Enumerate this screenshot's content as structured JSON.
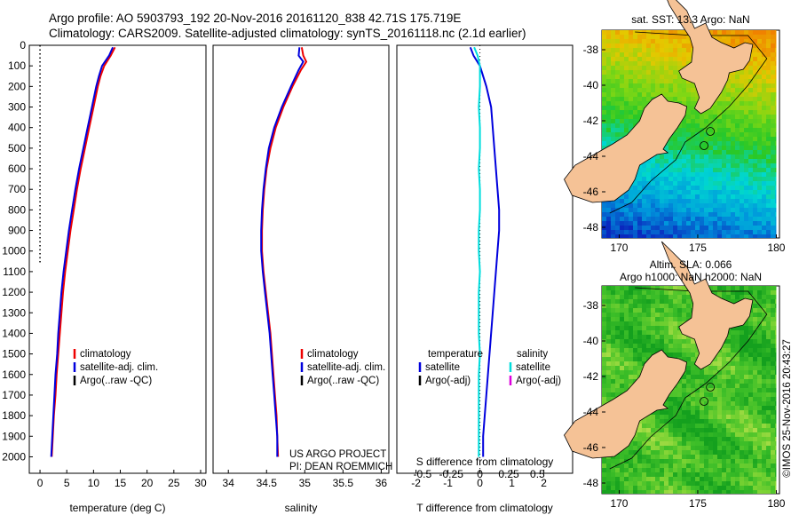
{
  "header": {
    "line1": "Argo profile: AO 5903793_192 20-Nov-2016 20161120_838 42.71S 175.719E",
    "line2": "Climatology: CARS2009. Satellite-adjusted climatology: synTS_20161118.nc (2.1d earlier)"
  },
  "colors": {
    "climatology": "#ee0000",
    "satellite": "#0000dd",
    "argo": "#000000",
    "s_satellite": "#00dddd",
    "s_argo": "#dd00dd",
    "land": "#f5c296"
  },
  "credit": "©IMOS 25-Nov-2016 20:43:27",
  "chart_data": [
    {
      "type": "line",
      "name": "temperature",
      "xlabel": "temperature (deg C)",
      "xlim": [
        -2,
        31
      ],
      "xticks": [
        "0",
        "5",
        "10",
        "15",
        "20",
        "25",
        "30"
      ],
      "ylim": [
        0,
        2080
      ],
      "yticks": [
        "0",
        "100",
        "200",
        "300",
        "400",
        "500",
        "600",
        "700",
        "800",
        "900",
        "1000",
        "1100",
        "1200",
        "1300",
        "1400",
        "1500",
        "1600",
        "1700",
        "1800",
        "1900",
        "2000"
      ],
      "legend": [
        "climatology",
        "satellite-adj. clim.",
        "Argo(..raw -QC)"
      ],
      "depth": [
        10,
        50,
        100,
        150,
        200,
        300,
        400,
        500,
        600,
        700,
        800,
        900,
        1000,
        1100,
        1200,
        1300,
        1400,
        1500,
        1600,
        1700,
        1800,
        1900,
        2000
      ],
      "series": [
        {
          "name": "climatology",
          "values": [
            14.0,
            13.2,
            12.0,
            11.3,
            10.8,
            10.0,
            9.2,
            8.4,
            7.6,
            6.9,
            6.3,
            5.7,
            5.2,
            4.7,
            4.3,
            4.0,
            3.7,
            3.4,
            3.1,
            2.9,
            2.6,
            2.4,
            2.2
          ]
        },
        {
          "name": "satellite-adj. clim.",
          "values": [
            13.6,
            12.9,
            11.6,
            11.0,
            10.5,
            9.7,
            8.9,
            8.1,
            7.3,
            6.6,
            6.0,
            5.4,
            4.9,
            4.4,
            4.0,
            3.7,
            3.4,
            3.2,
            2.9,
            2.7,
            2.5,
            2.3,
            2.1
          ]
        }
      ],
      "argo_marker": {
        "x": 0,
        "depth_range": [
          0,
          1060
        ]
      }
    },
    {
      "type": "line",
      "name": "salinity",
      "xlabel": "salinity",
      "xlim": [
        33.8,
        36.1
      ],
      "xticks": [
        "34",
        "34.5",
        "35",
        "35.5",
        "36"
      ],
      "legend": [
        "climatology",
        "satellite-adj. clim.",
        "Argo(..raw -QC)"
      ],
      "depth": [
        10,
        50,
        80,
        120,
        200,
        300,
        400,
        500,
        600,
        700,
        800,
        900,
        1000,
        1100,
        1200,
        1300,
        1400,
        1500,
        1600,
        1700,
        1800,
        1900,
        2000
      ],
      "series": [
        {
          "name": "climatology",
          "values": [
            34.96,
            34.98,
            35.02,
            34.95,
            34.84,
            34.72,
            34.62,
            34.55,
            34.5,
            34.47,
            34.45,
            34.44,
            34.44,
            34.46,
            34.49,
            34.52,
            34.55,
            34.57,
            34.59,
            34.61,
            34.63,
            34.64,
            34.65
          ]
        },
        {
          "name": "satellite-adj. clim.",
          "values": [
            34.93,
            34.92,
            34.98,
            34.92,
            34.82,
            34.7,
            34.6,
            34.53,
            34.49,
            34.46,
            34.44,
            34.43,
            34.43,
            34.45,
            34.48,
            34.51,
            34.54,
            34.56,
            34.58,
            34.6,
            34.62,
            34.64,
            34.64
          ]
        }
      ],
      "annotation": [
        "US ARGO PROJECT",
        "PI: DEAN ROEMMICH"
      ]
    },
    {
      "type": "line",
      "name": "difference",
      "xlabel": "T difference from climatology",
      "top_xlabel": "S difference from climatology",
      "xlim": [
        -2.6,
        2.9
      ],
      "xticks": [
        "-2",
        "-1",
        "0",
        "1",
        "2"
      ],
      "top_xticks": [
        "-0.5",
        "-0.25",
        "0",
        "0.25",
        "0.5"
      ],
      "legend_left": {
        "title": "temperature",
        "items": [
          "satellite",
          "Argo(-adj)"
        ]
      },
      "legend_right": {
        "title": "salinity",
        "items": [
          "satellite",
          "Argo(-adj)"
        ]
      },
      "depth": [
        10,
        50,
        100,
        200,
        300,
        400,
        500,
        600,
        700,
        800,
        900,
        1000,
        1100,
        1200,
        1300,
        1400,
        1500,
        1600,
        1700,
        1800,
        1900,
        2000
      ],
      "series": [
        {
          "name": "T satellite",
          "values": [
            -0.3,
            -0.2,
            0.0,
            0.2,
            0.35,
            0.4,
            0.45,
            0.5,
            0.55,
            0.6,
            0.6,
            0.55,
            0.5,
            0.45,
            0.4,
            0.35,
            0.3,
            0.25,
            0.2,
            0.15,
            0.1,
            0.1
          ]
        },
        {
          "name": "S satellite",
          "values": [
            -0.05,
            -0.02,
            0.0,
            0.0,
            -0.01,
            0.0,
            0.0,
            -0.01,
            0.0,
            0.0,
            -0.01,
            -0.01,
            0.0,
            -0.01,
            -0.01,
            -0.01,
            0.0,
            -0.01,
            -0.01,
            -0.01,
            -0.01,
            -0.01
          ]
        }
      ]
    },
    {
      "type": "heatmap",
      "name": "sst-map",
      "title": "sat. SST: 13.3 Argo: NaN",
      "xticks": [
        "170",
        "175",
        "180"
      ],
      "yticks": [
        "-38",
        "-40",
        "-42",
        "-44",
        "-46",
        "-48"
      ]
    },
    {
      "type": "heatmap",
      "name": "sla-map",
      "title_line1": "Altim. SLA: 0.066",
      "title_line2": "Argo h1000: NaN h2000: NaN",
      "xticks": [
        "170",
        "175",
        "180"
      ],
      "yticks": [
        "-38",
        "-40",
        "-42",
        "-44",
        "-46",
        "-48"
      ]
    }
  ]
}
